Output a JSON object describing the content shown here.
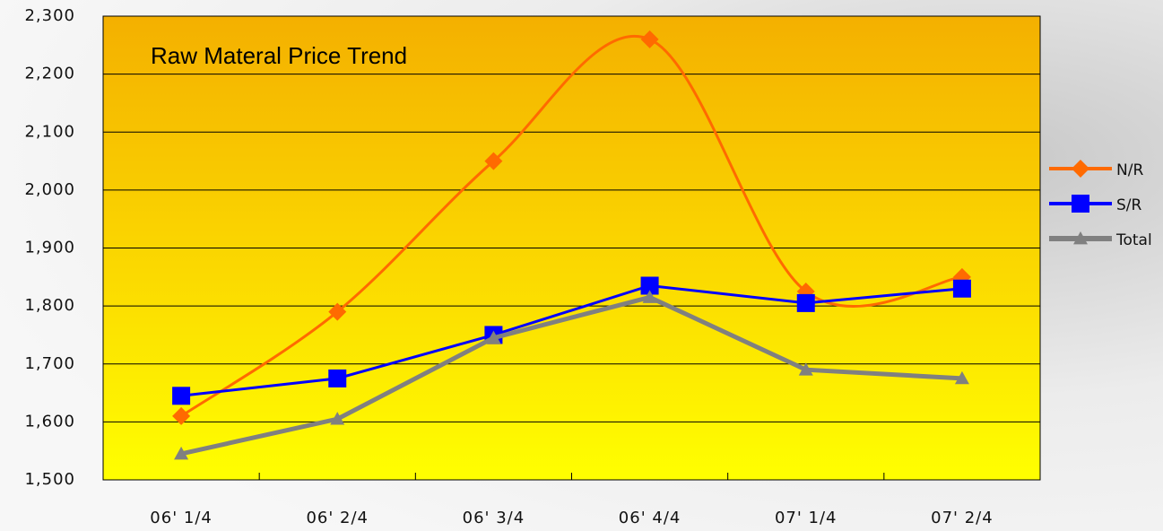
{
  "chart_data": {
    "type": "line",
    "title": "Raw Materal Price Trend",
    "categories": [
      "06' 1/4",
      "06' 2/4",
      "06' 3/4",
      "06' 4/4",
      "07' 1/4",
      "07' 2/4"
    ],
    "series": [
      {
        "name": "N/R",
        "color": "#ff6a00",
        "marker": "diamond",
        "smooth": true,
        "values": [
          1610,
          1790,
          2050,
          2260,
          1825,
          1850
        ]
      },
      {
        "name": "S/R",
        "color": "#0000ff",
        "marker": "square",
        "smooth": false,
        "values": [
          1645,
          1675,
          1750,
          1835,
          1805,
          1830
        ]
      },
      {
        "name": "Total",
        "color": "#808080",
        "marker": "triangle",
        "smooth": false,
        "values": [
          1545,
          1605,
          1745,
          1815,
          1690,
          1675
        ]
      }
    ],
    "ylim": [
      1500,
      2300
    ],
    "yticks": [
      {
        "value": 1500,
        "label": "1,500"
      },
      {
        "value": 1600,
        "label": "1,600"
      },
      {
        "value": 1700,
        "label": "1,700"
      },
      {
        "value": 1800,
        "label": "1,800"
      },
      {
        "value": 1900,
        "label": "1,900"
      },
      {
        "value": 2000,
        "label": "2,000"
      },
      {
        "value": 2100,
        "label": "2,100"
      },
      {
        "value": 2200,
        "label": "2,200"
      },
      {
        "value": 2300,
        "label": "2,300"
      }
    ],
    "grid": true,
    "legend": "right"
  }
}
